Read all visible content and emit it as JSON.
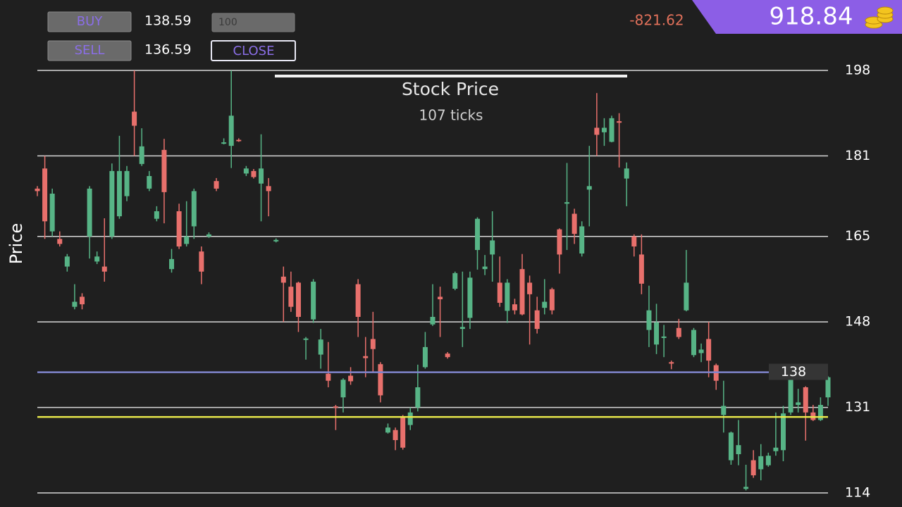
{
  "controls": {
    "buy_label": "BUY",
    "buy_price": "138.59",
    "quantity": "100",
    "sell_label": "SELL",
    "sell_price": "136.59",
    "close_label": "CLOSE",
    "pnl": "-821.62",
    "balance": "918.84"
  },
  "chart_data": {
    "type": "candlestick",
    "title": "Stock Price",
    "subtitle": "107 ticks",
    "y_label": "Price",
    "up_color": "#57b486",
    "down_color": "#e8706c",
    "ylim": [
      114,
      198
    ],
    "yticks": [
      114,
      131,
      148,
      165,
      181,
      198
    ],
    "grid": true,
    "price_line": {
      "value": 138,
      "color": "#7f84cc"
    },
    "position_line": {
      "value": 129.1,
      "color": "#e8e84a"
    },
    "open": [
      174.5,
      178.5,
      166,
      164.5,
      159,
      151,
      153,
      165,
      160,
      159,
      165,
      169,
      173,
      189.8,
      179.4,
      174.5,
      168.5,
      182.2,
      158.5,
      170,
      163.5,
      167,
      162,
      165,
      176,
      183.5,
      183,
      184.2,
      177.5,
      178,
      175.5,
      175,
      164,
      157,
      155,
      155.8,
      144.5,
      148.5,
      141.5,
      137.7,
      131.2,
      133,
      137.3,
      155.5,
      141.2,
      144.6,
      139.6,
      126,
      126.5,
      129,
      127.5,
      131,
      139,
      147.5,
      153,
      141.7,
      154.6,
      146.6,
      148.8,
      162.3,
      158.5,
      161.4,
      155.8,
      150.2,
      151.5,
      158.5,
      155.8,
      150.3,
      150.8,
      154.5,
      166.4,
      171.5,
      169.5,
      161.6,
      174.3,
      186.6,
      185.7,
      183.8,
      187.9,
      176.5,
      165,
      161.4,
      146.4,
      143.5,
      144.8,
      140,
      146.8,
      150.3,
      141.4,
      141.8,
      144.6,
      139.4,
      129.5,
      120.5,
      121.7,
      114.8,
      120.5,
      118.7,
      119.5,
      122.3,
      122.5,
      130,
      131.5,
      135,
      130,
      128.5,
      133
    ],
    "high": [
      175,
      181,
      174.5,
      166,
      161.5,
      155.5,
      153.7,
      175,
      162,
      168.6,
      179.5,
      185,
      179,
      198,
      186.5,
      178,
      171,
      184.4,
      162.5,
      171.5,
      172,
      174.5,
      163,
      165.8,
      176.6,
      184.5,
      198,
      184.5,
      179,
      178.4,
      185.3,
      176.6,
      164.6,
      159,
      158,
      156,
      145,
      156.5,
      146.6,
      144,
      131.5,
      136.8,
      139,
      156.5,
      145,
      150,
      140,
      127.8,
      127,
      129.5,
      131,
      139.5,
      146,
      155.5,
      155,
      142,
      158,
      158,
      158,
      168.8,
      161.3,
      170,
      161,
      156.5,
      152.6,
      161.5,
      157.2,
      153,
      156.5,
      154.8,
      166.6,
      179.6,
      170.5,
      168,
      183,
      193.5,
      188.5,
      189,
      189.5,
      179.7,
      165.4,
      165.4,
      155.2,
      151.6,
      147.4,
      140.3,
      148.6,
      162.3,
      146.8,
      143.7,
      148,
      139.7,
      136.3,
      126.2,
      128.5,
      119.6,
      122.5,
      123.7,
      122,
      130,
      131.3,
      136.7,
      134.7,
      135.2,
      131.5,
      133,
      137.2
    ],
    "low": [
      173,
      164.5,
      165,
      163,
      158,
      150.5,
      150.5,
      160.6,
      159.5,
      156,
      164.5,
      168.5,
      172,
      181,
      179,
      174,
      168,
      167.6,
      157.8,
      162.5,
      163,
      164.5,
      155.5,
      164.7,
      174,
      183.3,
      178.6,
      183.8,
      177,
      176.5,
      168,
      169,
      163.8,
      148,
      150,
      146,
      140.5,
      147.8,
      138.7,
      135,
      126.5,
      130,
      135.5,
      145,
      137,
      138,
      132,
      125.8,
      122.5,
      122.6,
      126.5,
      130.2,
      138.7,
      147.2,
      145,
      140.7,
      154.3,
      143,
      146.6,
      158.4,
      157.3,
      156,
      151,
      147.8,
      149.5,
      149.3,
      143.5,
      145.7,
      149.5,
      149.5,
      157.6,
      162.3,
      163.5,
      161,
      167,
      181,
      183,
      183.7,
      178.7,
      171,
      161,
      153.5,
      143,
      141.6,
      141,
      138.6,
      144.6,
      150.1,
      141,
      140,
      137,
      134.5,
      126,
      119.6,
      119.5,
      114.5,
      117,
      116.5,
      119.2,
      121.4,
      120.3,
      129.5,
      130,
      124.4,
      128.3,
      128.3,
      131.3
    ],
    "close": [
      174,
      168,
      173.5,
      163.5,
      161,
      152,
      151.5,
      174.5,
      161,
      158,
      178,
      178,
      178,
      187,
      182.9,
      177,
      170,
      173.8,
      160.5,
      163,
      165,
      174,
      158,
      165.4,
      174.5,
      183.7,
      189,
      184,
      178.5,
      176.8,
      178.5,
      174,
      164.3,
      155.8,
      151,
      149,
      144.7,
      156,
      144.5,
      136.3,
      131,
      136.5,
      136.2,
      149,
      140.8,
      142.6,
      133.4,
      127,
      124.5,
      123,
      130,
      135,
      143,
      149,
      152.5,
      141,
      157.7,
      147,
      156.8,
      168.5,
      159,
      164.2,
      151.8,
      155.8,
      150.3,
      149.5,
      153.5,
      146.6,
      152,
      150.3,
      161.4,
      171.8,
      165.5,
      167,
      175,
      185.2,
      186.6,
      188.5,
      187.6,
      178.5,
      163,
      155.6,
      150.3,
      147.9,
      145.1,
      139.7,
      145,
      155.8,
      146.4,
      142.5,
      140.3,
      136.3,
      131.3,
      126,
      123.5,
      115.2,
      117.5,
      121.3,
      121.4,
      123,
      129.8,
      136.5,
      132,
      130,
      128.5,
      131.5,
      137
    ]
  }
}
